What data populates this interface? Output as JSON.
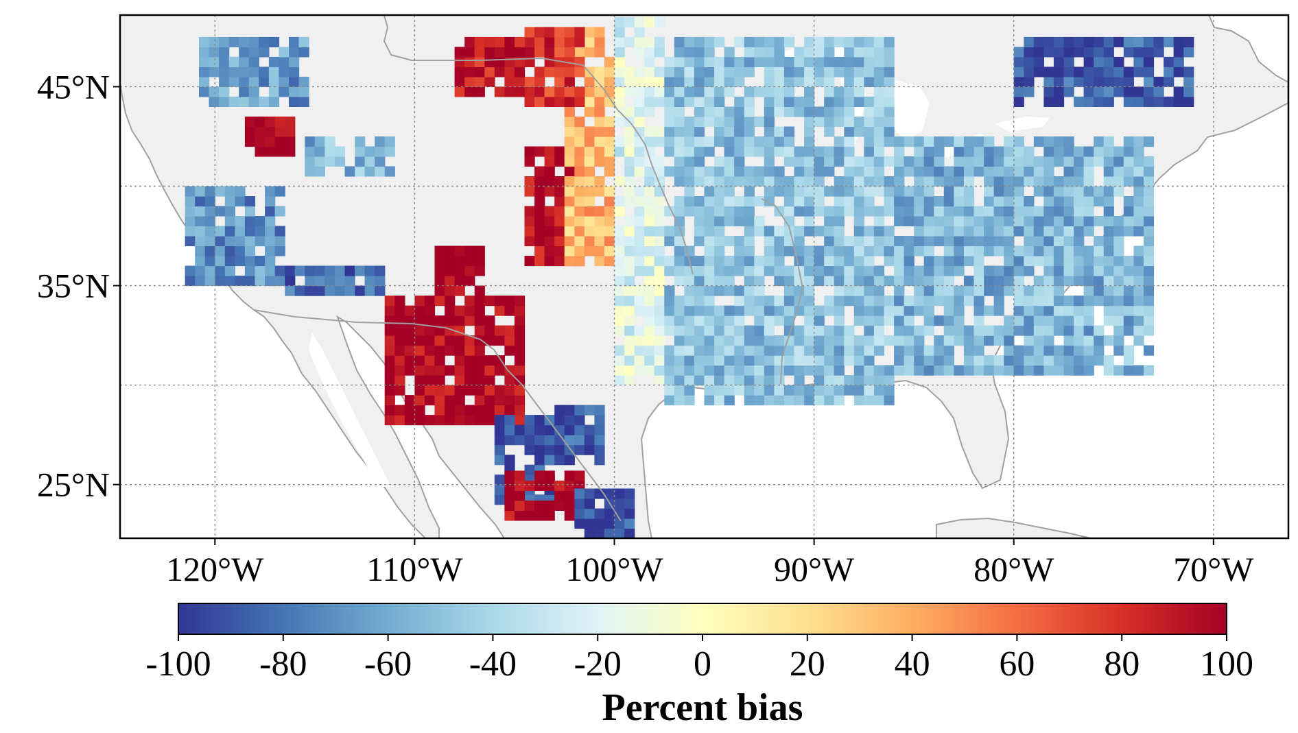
{
  "map": {
    "lat_ticks": [
      {
        "value": 45,
        "label": "45°N"
      },
      {
        "value": 35,
        "label": "35°N"
      },
      {
        "value": 25,
        "label": "25°N"
      }
    ],
    "lon_ticks": [
      {
        "value": -120,
        "label": "120°W"
      },
      {
        "value": -110,
        "label": "110°W"
      },
      {
        "value": -100,
        "label": "100°W"
      },
      {
        "value": -90,
        "label": "90°W"
      },
      {
        "value": -80,
        "label": "80°W"
      },
      {
        "value": -70,
        "label": "70°W"
      }
    ],
    "extent": {
      "lon": [
        -124.75,
        -66.25
      ],
      "lat": [
        22.3,
        48.6
      ]
    },
    "gridlines": true,
    "land_color": "#f0f0f0",
    "ocean_color": "#ffffff",
    "coastline_color": "#a0a0a0"
  },
  "colorbar": {
    "title": "Percent bias",
    "range": [
      -100,
      100
    ],
    "ticks": [
      {
        "value": -100,
        "label": "-100"
      },
      {
        "value": -80,
        "label": "-80"
      },
      {
        "value": -60,
        "label": "-60"
      },
      {
        "value": -40,
        "label": "-40"
      },
      {
        "value": -20,
        "label": "-20"
      },
      {
        "value": 0,
        "label": "0"
      },
      {
        "value": 20,
        "label": "20"
      },
      {
        "value": 40,
        "label": "40"
      },
      {
        "value": 60,
        "label": "60"
      },
      {
        "value": 80,
        "label": "80"
      },
      {
        "value": 100,
        "label": "100"
      }
    ],
    "colors": [
      "#313695",
      "#4575b4",
      "#74add1",
      "#abd9e9",
      "#e0f3f8",
      "#ffffbf",
      "#fee090",
      "#fdae61",
      "#f46d43",
      "#d73027",
      "#a50026"
    ]
  },
  "chart_data": {
    "type": "heatmap",
    "variable": "Percent bias",
    "value_range": [
      -100,
      100
    ],
    "regions": [
      {
        "lon": [
          -120.8,
          -115.5
        ],
        "lat": [
          44.0,
          47.5
        ],
        "bias": -65
      },
      {
        "lon": [
          -118.5,
          -116.0
        ],
        "lat": [
          41.5,
          43.3
        ],
        "bias": 100
      },
      {
        "lon": [
          -115.5,
          -111.0
        ],
        "lat": [
          40.5,
          42.5
        ],
        "bias": -55
      },
      {
        "lon": [
          -121.5,
          -116.5
        ],
        "lat": [
          35.0,
          40.0
        ],
        "bias": -70
      },
      {
        "lon": [
          -116.5,
          -111.5
        ],
        "lat": [
          34.5,
          36.0
        ],
        "bias": -85
      },
      {
        "lon": [
          -111.5,
          -104.5
        ],
        "lat": [
          28.0,
          34.5
        ],
        "bias": 100
      },
      {
        "lon": [
          -106.0,
          -103.0
        ],
        "lat": [
          24.0,
          28.5
        ],
        "bias": -95
      },
      {
        "lon": [
          -105.5,
          -101.5
        ],
        "lat": [
          23.2,
          25.3
        ],
        "bias": 100
      },
      {
        "lon": [
          -103.5,
          -100.5
        ],
        "lat": [
          26.0,
          29.0
        ],
        "bias": -90
      },
      {
        "lon": [
          -104.5,
          -101.5
        ],
        "lat": [
          36.0,
          42.0
        ],
        "bias": 95
      },
      {
        "lon": [
          -102.5,
          -100.0
        ],
        "lat": [
          36.0,
          48.0
        ],
        "bias": 35
      },
      {
        "lon": [
          -104.5,
          -101.5
        ],
        "lat": [
          44.0,
          48.0
        ],
        "bias": 80
      },
      {
        "lon": [
          -108.0,
          -104.5
        ],
        "lat": [
          44.5,
          47.5
        ],
        "bias": 90
      },
      {
        "lon": [
          -109.0,
          -106.5
        ],
        "lat": [
          34.5,
          37.0
        ],
        "bias": 100
      },
      {
        "lon": [
          -100.0,
          -97.5
        ],
        "lat": [
          30.0,
          48.5
        ],
        "bias": -20
      },
      {
        "lon": [
          -97.5,
          -86.0
        ],
        "lat": [
          29.0,
          47.5
        ],
        "bias": -50
      },
      {
        "lon": [
          -86.0,
          -73.0
        ],
        "lat": [
          30.5,
          42.5
        ],
        "bias": -55
      },
      {
        "lon": [
          -80.0,
          -71.0
        ],
        "lat": [
          44.0,
          47.5
        ],
        "bias": -90
      },
      {
        "lon": [
          -102.0,
          -99.0
        ],
        "lat": [
          22.3,
          24.5
        ],
        "bias": -95
      }
    ]
  }
}
